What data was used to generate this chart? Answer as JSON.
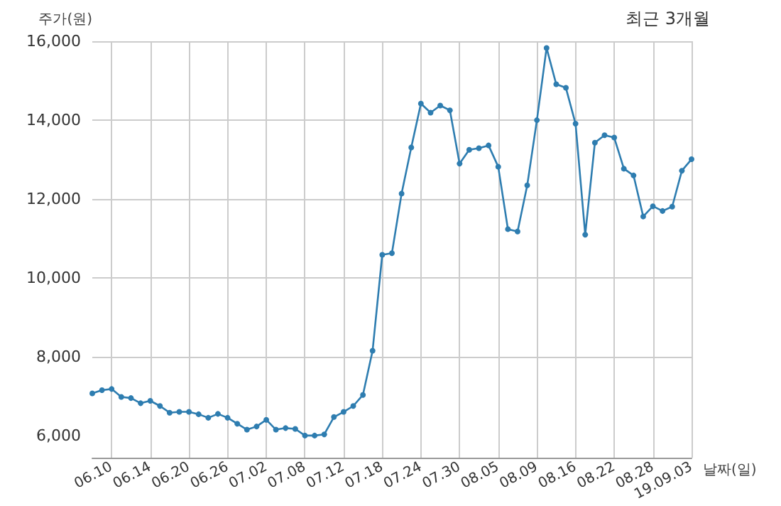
{
  "chart_data": {
    "type": "line",
    "title": "최근 3개월",
    "xlabel": "날짜(일)",
    "ylabel": "주가(원)",
    "categories": [
      null,
      null,
      "06.10",
      null,
      null,
      null,
      "06.14",
      null,
      null,
      null,
      "06.20",
      null,
      null,
      null,
      "06.26",
      null,
      null,
      null,
      "07.02",
      null,
      null,
      null,
      "07.08",
      null,
      null,
      null,
      "07.12",
      null,
      null,
      null,
      "07.18",
      null,
      null,
      null,
      "07.24",
      null,
      null,
      null,
      "07.30",
      null,
      null,
      null,
      "08.05",
      null,
      null,
      null,
      "08.09",
      null,
      null,
      null,
      "08.16",
      null,
      null,
      null,
      "08.22",
      null,
      null,
      null,
      "08.28",
      null,
      null,
      null,
      "19.09.03"
    ],
    "series": [
      {
        "color": "#2e7db0",
        "values": [
          7080,
          7160,
          7190,
          6990,
          6960,
          6830,
          6890,
          6760,
          6590,
          6610,
          6610,
          6550,
          6460,
          6560,
          6460,
          6310,
          6160,
          6240,
          6410,
          6160,
          6200,
          6180,
          6010,
          6010,
          6040,
          6480,
          6610,
          6760,
          7040,
          8160,
          10590,
          10630,
          12140,
          13310,
          14420,
          14190,
          14370,
          14250,
          12900,
          13250,
          13290,
          13360,
          12820,
          11240,
          11180,
          12350,
          14000,
          15830,
          14910,
          14820,
          13910,
          11100,
          13430,
          13620,
          13560,
          12770,
          12600,
          11560,
          11820,
          11700,
          11810,
          12720,
          13010
        ]
      }
    ],
    "ylim": [
      5450,
      16000
    ],
    "yticks": [
      {
        "value": 6000,
        "label": "6,000"
      },
      {
        "value": 8000,
        "label": "8,000"
      },
      {
        "value": 10000,
        "label": "10,000"
      },
      {
        "value": 12000,
        "label": "12,000"
      },
      {
        "value": 14000,
        "label": "14,000"
      },
      {
        "value": 16000,
        "label": "16,000"
      }
    ],
    "grid": true,
    "marker": "circle",
    "line_style": "solid"
  }
}
